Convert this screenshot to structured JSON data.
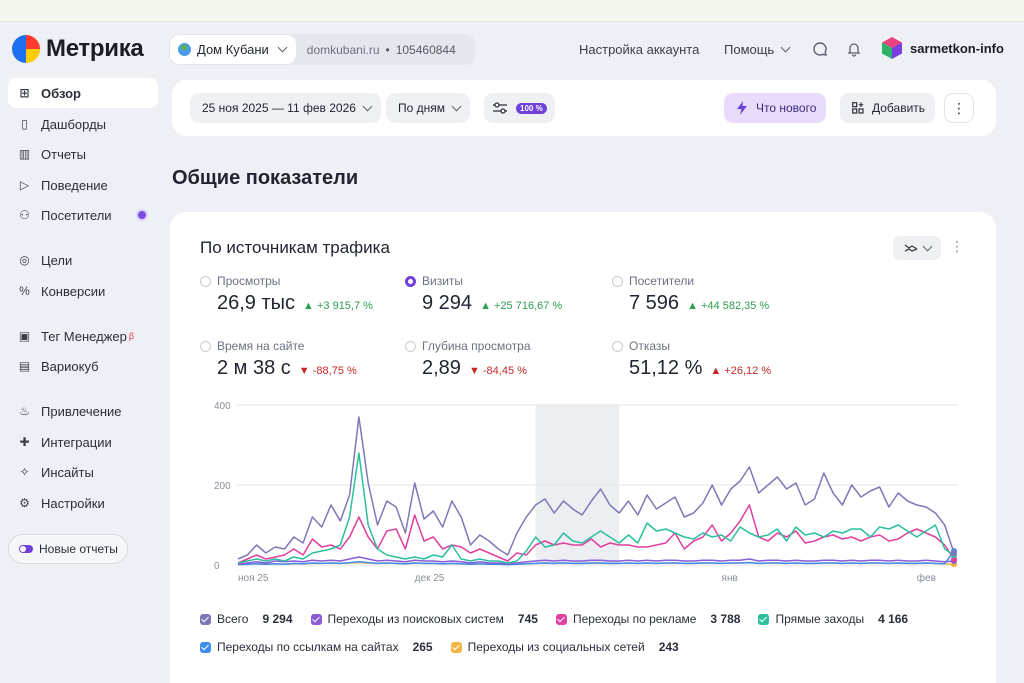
{
  "header": {
    "logo_text": "Метрика",
    "counter_name": "Дом Кубани",
    "counter_domain": "domkubani.ru",
    "counter_sep": "•",
    "counter_id": "105460844",
    "account_settings": "Настройка аккаунта",
    "help": "Помощь",
    "user": "sarmetkon-info"
  },
  "sidebar": {
    "items": [
      {
        "label": "Обзор",
        "icon": "grid-icon",
        "active": true
      },
      {
        "label": "Дашборды",
        "icon": "dashboard-icon"
      },
      {
        "label": "Отчеты",
        "icon": "bar-chart-icon"
      },
      {
        "label": "Поведение",
        "icon": "play-icon"
      },
      {
        "label": "Посетители",
        "icon": "user-icon"
      },
      {
        "label": "Цели",
        "icon": "target-icon"
      },
      {
        "label": "Конверсии",
        "icon": "percent-icon"
      },
      {
        "label": "Тег Менеджер",
        "icon": "tag-icon"
      },
      {
        "label": "Вариокуб",
        "icon": "cube-icon"
      },
      {
        "label": "Привлечение",
        "icon": "flame-icon"
      },
      {
        "label": "Интеграции",
        "icon": "puzzle-icon"
      },
      {
        "label": "Инсайты",
        "icon": "sparkle-icon"
      },
      {
        "label": "Настройки",
        "icon": "gear-icon"
      }
    ],
    "tag_manager_badge": "β",
    "new_reports": "Новые отчеты"
  },
  "filters": {
    "date_range": "25 ноя 2025 — 11 фев 2026",
    "grouping": "По дням",
    "sampling": "100 %",
    "whats_new": "Что нового",
    "add": "Добавить"
  },
  "section_title": "Общие показатели",
  "card": {
    "title": "По источникам трафика",
    "metrics": [
      {
        "label": "Просмотры",
        "value": "26,9 тыс",
        "delta": "▲ +3 915,7 %",
        "dir": "up",
        "selected": false
      },
      {
        "label": "Визиты",
        "value": "9 294",
        "delta": "▲ +25 716,67 %",
        "dir": "up",
        "selected": true
      },
      {
        "label": "Посетители",
        "value": "7 596",
        "delta": "▲ +44 582,35 %",
        "dir": "up",
        "selected": false
      },
      {
        "label": "Время на сайте",
        "value": "2 м 38 с",
        "delta": "▼ -88,75 %",
        "dir": "down",
        "selected": false
      },
      {
        "label": "Глубина просмотра",
        "value": "2,89",
        "delta": "▼ -84,45 %",
        "dir": "down",
        "selected": false
      },
      {
        "label": "Отказы",
        "value": "51,12 %",
        "delta": "▲ +26,12 %",
        "dir": "down",
        "selected": false
      }
    ],
    "legend": [
      {
        "name": "Всего",
        "value": "9 294",
        "color": "#7f78b8"
      },
      {
        "name": "Переходы из поисковых систем",
        "value": "745",
        "color": "#8a5cd6"
      },
      {
        "name": "Переходы по рекламе",
        "value": "3 788",
        "color": "#e040a0"
      },
      {
        "name": "Прямые заходы",
        "value": "4 166",
        "color": "#2bbf9d"
      },
      {
        "name": "Переходы по ссылкам на сайтах",
        "value": "265",
        "color": "#3d8df0"
      },
      {
        "name": "Переходы из социальных сетей",
        "value": "243",
        "color": "#f2b544"
      }
    ]
  },
  "chart_data": {
    "type": "line",
    "ylim": [
      0,
      400
    ],
    "y_ticks": [
      "400",
      "200",
      "0"
    ],
    "x_ticks": [
      {
        "label": "ноя 25",
        "day": 0
      },
      {
        "label": "дек 25",
        "day": 19
      },
      {
        "label": "янв",
        "day": 52
      },
      {
        "label": "фев",
        "day": 73
      }
    ],
    "series": [
      {
        "name": "Всего",
        "color": "#7f78b8",
        "values": [
          15,
          25,
          50,
          30,
          45,
          40,
          70,
          55,
          120,
          95,
          150,
          110,
          175,
          370,
          205,
          100,
          160,
          145,
          80,
          205,
          115,
          135,
          95,
          160,
          120,
          50,
          75,
          60,
          40,
          25,
          80,
          120,
          150,
          165,
          130,
          160,
          140,
          125,
          160,
          190,
          150,
          130,
          160,
          125,
          175,
          140,
          155,
          170,
          120,
          130,
          155,
          200,
          150,
          190,
          210,
          245,
          180,
          200,
          220,
          190,
          205,
          150,
          165,
          230,
          180,
          150,
          200,
          170,
          185,
          195,
          145,
          180,
          160,
          150,
          145,
          130,
          100,
          30
        ]
      },
      {
        "name": "Прямые заходы",
        "color": "#2bbf9d",
        "values": [
          5,
          10,
          15,
          10,
          15,
          10,
          20,
          15,
          30,
          35,
          40,
          50,
          120,
          280,
          100,
          40,
          25,
          20,
          15,
          20,
          15,
          25,
          20,
          50,
          15,
          10,
          15,
          10,
          10,
          5,
          10,
          35,
          70,
          45,
          50,
          80,
          60,
          55,
          70,
          85,
          70,
          55,
          75,
          55,
          105,
          85,
          90,
          80,
          70,
          65,
          80,
          70,
          75,
          60,
          95,
          80,
          70,
          75,
          90,
          60,
          95,
          75,
          80,
          70,
          85,
          80,
          90,
          90,
          70,
          95,
          90,
          100,
          85,
          70,
          85,
          100,
          40,
          25
        ]
      },
      {
        "name": "Переходы по рекламе",
        "color": "#e040a0",
        "values": [
          5,
          15,
          25,
          15,
          20,
          25,
          40,
          25,
          65,
          45,
          50,
          40,
          70,
          120,
          70,
          40,
          85,
          90,
          40,
          125,
          60,
          70,
          40,
          50,
          45,
          30,
          40,
          30,
          20,
          10,
          30,
          25,
          50,
          60,
          50,
          55,
          50,
          50,
          65,
          45,
          55,
          50,
          50,
          45,
          45,
          50,
          55,
          80,
          40,
          60,
          70,
          100,
          60,
          80,
          110,
          150,
          70,
          60,
          80,
          70,
          85,
          55,
          60,
          70,
          75,
          65,
          70,
          60,
          70,
          75,
          60,
          65,
          80,
          90,
          80,
          70,
          50,
          15
        ]
      },
      {
        "name": "Переходы из поисковых систем",
        "color": "#8a5cd6",
        "values": [
          2,
          5,
          8,
          5,
          10,
          8,
          10,
          8,
          12,
          10,
          12,
          10,
          15,
          20,
          15,
          10,
          12,
          10,
          8,
          12,
          10,
          10,
          8,
          10,
          8,
          5,
          8,
          5,
          5,
          3,
          5,
          8,
          10,
          12,
          10,
          12,
          10,
          10,
          12,
          12,
          10,
          10,
          12,
          10,
          12,
          10,
          12,
          12,
          10,
          10,
          12,
          12,
          10,
          12,
          12,
          15,
          10,
          12,
          12,
          10,
          12,
          10,
          10,
          12,
          12,
          10,
          12,
          10,
          12,
          12,
          10,
          12,
          10,
          10,
          12,
          10,
          8,
          10
        ]
      },
      {
        "name": "Переходы по ссылкам на сайтах",
        "color": "#3d8df0",
        "values": [
          1,
          2,
          3,
          2,
          3,
          2,
          4,
          3,
          5,
          4,
          5,
          4,
          6,
          8,
          6,
          4,
          5,
          4,
          3,
          5,
          4,
          4,
          3,
          4,
          3,
          2,
          3,
          2,
          2,
          1,
          2,
          3,
          4,
          5,
          4,
          5,
          4,
          4,
          5,
          5,
          4,
          4,
          5,
          4,
          5,
          4,
          5,
          5,
          4,
          4,
          5,
          5,
          4,
          5,
          5,
          6,
          4,
          5,
          5,
          4,
          5,
          4,
          4,
          5,
          5,
          4,
          5,
          4,
          5,
          5,
          4,
          5,
          4,
          4,
          5,
          4,
          3,
          35
        ]
      },
      {
        "name": "Переходы из социальных сетей",
        "color": "#f2b544",
        "values": [
          1,
          2,
          3,
          2,
          3,
          2,
          3,
          3,
          4,
          4,
          5,
          4,
          5,
          6,
          5,
          4,
          5,
          4,
          3,
          5,
          4,
          4,
          3,
          4,
          3,
          2,
          3,
          2,
          2,
          1,
          2,
          3,
          4,
          5,
          4,
          5,
          4,
          4,
          5,
          5,
          4,
          4,
          5,
          4,
          5,
          4,
          5,
          5,
          4,
          4,
          5,
          5,
          4,
          5,
          5,
          6,
          4,
          5,
          5,
          4,
          5,
          4,
          4,
          5,
          5,
          4,
          5,
          4,
          5,
          5,
          4,
          5,
          4,
          4,
          5,
          4,
          3,
          2
        ]
      }
    ]
  }
}
